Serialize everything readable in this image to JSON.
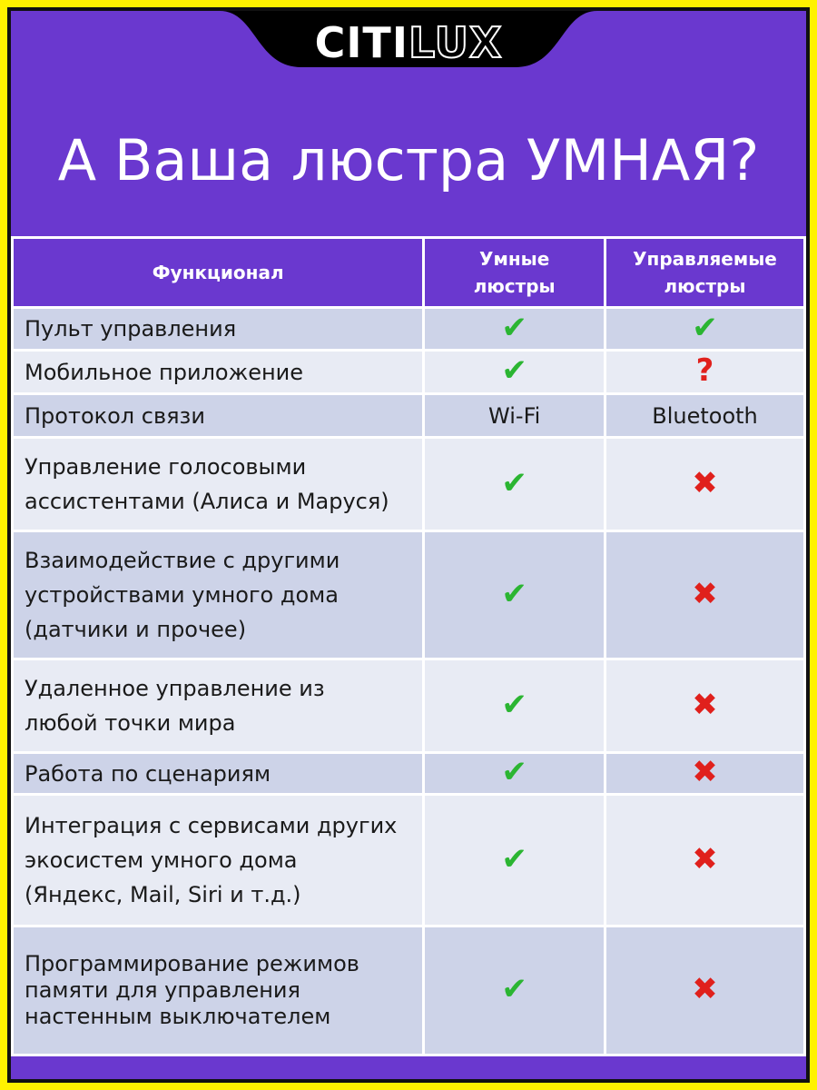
{
  "logo": {
    "bold": "CITI",
    "outline": "LUX"
  },
  "title": "А Ваша люстра УМНАЯ?",
  "table": {
    "header": [
      [
        "Функционал"
      ],
      [
        "Умные",
        "люстры"
      ],
      [
        "Управляемые",
        "люстры"
      ]
    ],
    "rows": [
      [
        [
          "Пульт управления"
        ],
        {
          "text": "✔",
          "color": "#2bb532"
        },
        {
          "text": "✔",
          "color": "#2bb532"
        }
      ],
      [
        [
          "Мобильное приложение"
        ],
        {
          "text": "✔",
          "color": "#2bb532"
        },
        {
          "text": "?",
          "color": "#e0201c"
        }
      ],
      [
        [
          "Протокол связи"
        ],
        {
          "text": "Wi-Fi",
          "color": "#1a1a1a"
        },
        {
          "text": "Bluetooth",
          "color": "#1a1a1a"
        }
      ],
      [
        [
          "Управление голосовыми",
          "ассистентами (Алиса и Маруся)"
        ],
        {
          "text": "✔",
          "color": "#2bb532"
        },
        {
          "text": "✖",
          "color": "#e0201c"
        }
      ],
      [
        [
          "Взаимодействие с другими",
          "устройствами умного дома",
          "(датчики и прочее)"
        ],
        {
          "text": "✔",
          "color": "#2bb532"
        },
        {
          "text": "✖",
          "color": "#e0201c"
        }
      ],
      [
        [
          "Удаленное управление из",
          "любой точки мира"
        ],
        {
          "text": "✔",
          "color": "#2bb532"
        },
        {
          "text": "✖",
          "color": "#e0201c"
        }
      ],
      [
        [
          "Работа по сценариям"
        ],
        {
          "text": "✔",
          "color": "#2bb532"
        },
        {
          "text": "✖",
          "color": "#e0201c"
        }
      ],
      [
        [
          "Интеграция с сервисами других",
          "экосистем умного дома",
          "(Яндекс, Mail, Siri и т.д.)"
        ],
        {
          "text": "✔",
          "color": "#2bb532"
        },
        {
          "text": "✖",
          "color": "#e0201c"
        }
      ],
      [
        [
          "Программирование режимов",
          "памяти для управления",
          "настенным выключателем"
        ],
        {
          "text": "✔",
          "color": "#2bb532"
        },
        {
          "text": "✖",
          "color": "#e0201c"
        }
      ]
    ]
  }
}
